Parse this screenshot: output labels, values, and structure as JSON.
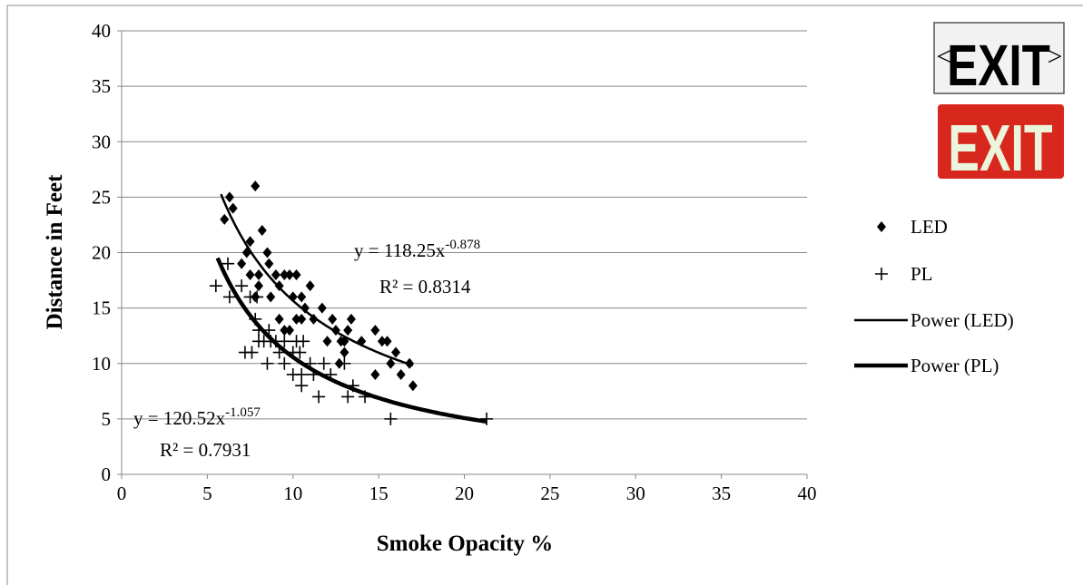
{
  "chart_data": {
    "type": "scatter",
    "xlabel": "Smoke Opacity %",
    "ylabel": "Distance in Feet",
    "xlim": [
      0,
      40
    ],
    "xticks": [
      0,
      5,
      10,
      15,
      20,
      25,
      30,
      35,
      40
    ],
    "ylim": [
      0,
      40
    ],
    "yticks": [
      0,
      5,
      10,
      15,
      20,
      25,
      30,
      35,
      40
    ],
    "grid": true,
    "legend": "right",
    "series": [
      {
        "name": "LED",
        "marker": "diamond",
        "color": "#000000",
        "x": [
          6,
          6.3,
          6.5,
          7,
          7.3,
          7.5,
          7.8,
          7.5,
          8,
          8.2,
          8.5,
          8.6,
          8,
          8.7,
          9,
          9.2,
          9.5,
          9.8,
          10.2,
          10,
          10.5,
          11,
          10.7,
          11.2,
          10.5,
          11.7,
          12,
          12.3,
          12.5,
          12.8,
          13,
          13.2,
          13.4,
          13,
          14,
          14.8,
          15.2,
          15.5,
          15.7,
          16,
          16.3,
          16.8,
          17,
          14.8,
          9.5,
          9.2,
          7.8,
          9.8,
          12.7,
          10.2
        ],
        "values": [
          23,
          25,
          24,
          19,
          20,
          21,
          26,
          18,
          18,
          22,
          20,
          19,
          17,
          16,
          18,
          17,
          18,
          18,
          18,
          16,
          16,
          17,
          15,
          14,
          14,
          15,
          12,
          14,
          13,
          12,
          11,
          13,
          14,
          12,
          12,
          13,
          12,
          12,
          10,
          11,
          9,
          10,
          8,
          9,
          13,
          14,
          16,
          13,
          10,
          14
        ]
      },
      {
        "name": "PL",
        "marker": "plus",
        "color": "#000000",
        "x": [
          5.5,
          6.2,
          6.3,
          7,
          7.5,
          7.2,
          7.6,
          7.8,
          8,
          8,
          8.3,
          8.5,
          8.6,
          8.7,
          9,
          9.2,
          9.5,
          9.5,
          10,
          10,
          10.2,
          10.4,
          10.5,
          10.5,
          10.6,
          11,
          11.2,
          11.5,
          11.8,
          12.2,
          13,
          13.2,
          13.5,
          14.2,
          15.7,
          21.3,
          7.9
        ],
        "values": [
          17,
          19,
          16,
          17,
          16,
          11,
          11,
          14,
          13,
          12,
          12,
          10,
          13,
          12,
          12,
          11,
          10,
          12,
          11,
          9,
          12,
          11,
          9,
          8,
          12,
          10,
          9,
          7,
          10,
          9,
          10,
          7,
          8,
          7,
          5,
          5,
          16
        ]
      }
    ],
    "trendlines": [
      {
        "name": "Power (LED)",
        "coefficient": {
          "value": 118.25,
          "label": "y = 118.25x"
        },
        "exponent": {
          "value": -0.878,
          "label": "-0.878"
        },
        "r2_label": "R² = 0.8314",
        "x_range": [
          5.8,
          17
        ]
      },
      {
        "name": "Power (PL)",
        "coefficient": {
          "value": 120.52,
          "label": "y = 120.52x"
        },
        "exponent": {
          "value": -1.057,
          "label": "-1.057"
        },
        "r2_label": "R² = 0.7931",
        "x_range": [
          5.6,
          21.3
        ]
      }
    ]
  },
  "exit_signs": [
    "EXIT",
    "EXIT"
  ]
}
